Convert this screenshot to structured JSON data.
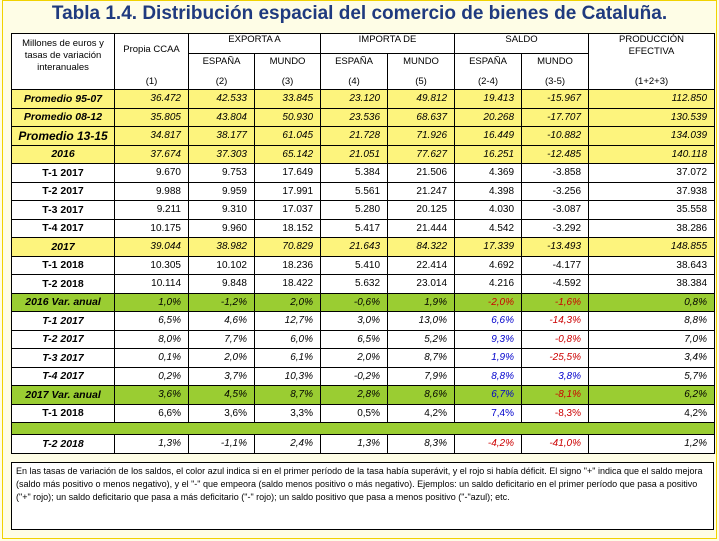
{
  "title": "Tabla 1.4. Distribución espacial del comercio de bienes de Cataluña.",
  "header": {
    "stub": "Millones de euros y tasas de variación interanuales",
    "propia_top": "Propia CCAA",
    "propia_bot": "(1)",
    "exporta": "EXPORTA A",
    "importa": "IMPORTA DE",
    "saldo": "SALDO",
    "prod_top": "PRODUCCIÓN EFECTIVA",
    "prod_bot": "(1+2+3)",
    "sub": [
      {
        "top": "ESPAÑA",
        "bot": "(2)"
      },
      {
        "top": "MUNDO",
        "bot": "(3)"
      },
      {
        "top": "ESPAÑA",
        "bot": "(4)"
      },
      {
        "top": "MUNDO",
        "bot": "(5)"
      },
      {
        "top": "ESPAÑA",
        "bot": "(2-4)"
      },
      {
        "top": "MUNDO",
        "bot": "(3-5)"
      }
    ]
  },
  "rows": [
    {
      "label": "Promedio 95-07",
      "style": "yellow italic",
      "values": [
        "36.472",
        "42.533",
        "33.845",
        "23.120",
        "49.812",
        "19.413",
        "-15.967",
        "112.850"
      ],
      "colors": [
        "",
        "",
        "",
        "",
        "",
        "",
        "",
        ""
      ]
    },
    {
      "label": "Promedio 08-12",
      "style": "yellow italic",
      "values": [
        "35.805",
        "43.804",
        "50.930",
        "23.536",
        "68.637",
        "20.268",
        "-17.707",
        "130.539"
      ],
      "colors": [
        "",
        "",
        "",
        "",
        "",
        "",
        "",
        ""
      ]
    },
    {
      "label": "Promedio 13-15",
      "style": "yellow italic big",
      "values": [
        "34.817",
        "38.177",
        "61.045",
        "21.728",
        "71.926",
        "16.449",
        "-10.882",
        "134.039"
      ],
      "colors": [
        "",
        "",
        "",
        "",
        "",
        "",
        "",
        ""
      ]
    },
    {
      "label": "2016",
      "style": "yellow italic",
      "values": [
        "37.674",
        "37.303",
        "65.142",
        "21.051",
        "77.627",
        "16.251",
        "-12.485",
        "140.118"
      ],
      "colors": [
        "",
        "",
        "",
        "",
        "",
        "",
        "",
        ""
      ]
    },
    {
      "label": "T-1 2017",
      "style": "white",
      "values": [
        "9.670",
        "9.753",
        "17.649",
        "5.384",
        "21.506",
        "4.369",
        "-3.858",
        "37.072"
      ],
      "colors": [
        "",
        "",
        "",
        "",
        "",
        "",
        "",
        ""
      ]
    },
    {
      "label": "T-2 2017",
      "style": "white",
      "values": [
        "9.988",
        "9.959",
        "17.991",
        "5.561",
        "21.247",
        "4.398",
        "-3.256",
        "37.938"
      ],
      "colors": [
        "",
        "",
        "",
        "",
        "",
        "",
        "",
        ""
      ]
    },
    {
      "label": "T-3 2017",
      "style": "white",
      "values": [
        "9.211",
        "9.310",
        "17.037",
        "5.280",
        "20.125",
        "4.030",
        "-3.087",
        "35.558"
      ],
      "colors": [
        "",
        "",
        "",
        "",
        "",
        "",
        "",
        ""
      ]
    },
    {
      "label": "T-4 2017",
      "style": "white",
      "values": [
        "10.175",
        "9.960",
        "18.152",
        "5.417",
        "21.444",
        "4.542",
        "-3.292",
        "38.286"
      ],
      "colors": [
        "",
        "",
        "",
        "",
        "",
        "",
        "",
        ""
      ]
    },
    {
      "label": "2017",
      "style": "yellow italic",
      "values": [
        "39.044",
        "38.982",
        "70.829",
        "21.643",
        "84.322",
        "17.339",
        "-13.493",
        "148.855"
      ],
      "colors": [
        "",
        "",
        "",
        "",
        "",
        "",
        "",
        ""
      ]
    },
    {
      "label": "T-1 2018",
      "style": "white",
      "values": [
        "10.305",
        "10.102",
        "18.236",
        "5.410",
        "22.414",
        "4.692",
        "-4.177",
        "38.643"
      ],
      "colors": [
        "",
        "",
        "",
        "",
        "",
        "",
        "",
        ""
      ]
    },
    {
      "label": "T-2 2018",
      "style": "white",
      "values": [
        "10.114",
        "9.848",
        "18.422",
        "5.632",
        "23.014",
        "4.216",
        "-4.592",
        "38.384"
      ],
      "colors": [
        "",
        "",
        "",
        "",
        "",
        "",
        "",
        ""
      ]
    },
    {
      "label": "2016 Var. anual",
      "style": "green italic",
      "values": [
        "1,0%",
        "-1,2%",
        "2,0%",
        "-0,6%",
        "1,9%",
        "-2,0%",
        "-1,6%",
        "0,8%"
      ],
      "colors": [
        "",
        "",
        "",
        "",
        "",
        "red",
        "red",
        ""
      ]
    },
    {
      "label": "T-1 2017",
      "style": "white italic",
      "values": [
        "6,5%",
        "4,6%",
        "12,7%",
        "3,0%",
        "13,0%",
        "6,6%",
        "-14,3%",
        "8,8%"
      ],
      "colors": [
        "",
        "",
        "",
        "",
        "",
        "blue",
        "red",
        ""
      ]
    },
    {
      "label": "T-2 2017",
      "style": "white italic",
      "values": [
        "8,0%",
        "7,7%",
        "6,0%",
        "6,5%",
        "5,2%",
        "9,3%",
        "-0,8%",
        "7,0%"
      ],
      "colors": [
        "",
        "",
        "",
        "",
        "",
        "blue",
        "red",
        ""
      ]
    },
    {
      "label": "T-3 2017",
      "style": "white italic",
      "values": [
        "0,1%",
        "2,0%",
        "6,1%",
        "2,0%",
        "8,7%",
        "1,9%",
        "-25,5%",
        "3,4%"
      ],
      "colors": [
        "",
        "",
        "",
        "",
        "",
        "blue",
        "red",
        ""
      ]
    },
    {
      "label": "T-4 2017",
      "style": "white italic",
      "values": [
        "0,2%",
        "3,7%",
        "10,3%",
        "-0,2%",
        "7,9%",
        "8,8%",
        "3,8%",
        "5,7%"
      ],
      "colors": [
        "",
        "",
        "",
        "",
        "",
        "blue",
        "blue",
        ""
      ]
    },
    {
      "label": "2017 Var. anual",
      "style": "green italic",
      "values": [
        "3,6%",
        "4,5%",
        "8,7%",
        "2,8%",
        "8,6%",
        "6,7%",
        "-8,1%",
        "6,2%"
      ],
      "colors": [
        "",
        "",
        "",
        "",
        "",
        "blue",
        "red",
        ""
      ]
    },
    {
      "label": "T-1 2018",
      "style": "white",
      "values": [
        "6,6%",
        "3,6%",
        "3,3%",
        "0,5%",
        "4,2%",
        "7,4%",
        "-8,3%",
        "4,2%"
      ],
      "colors": [
        "",
        "",
        "",
        "",
        "",
        "blue",
        "red",
        ""
      ]
    },
    {
      "label": "T-2 2018",
      "style": "white italic",
      "values": [
        "1,3%",
        "-1,1%",
        "2,4%",
        "1,3%",
        "8,3%",
        "-4,2%",
        "-41,0%",
        "1,2%"
      ],
      "colors": [
        "",
        "",
        "",
        "",
        "",
        "red",
        "red",
        ""
      ]
    }
  ],
  "note": "En las tasas de variación de los saldos, el color azul indica si en el primer período de la tasa había superávit, y el rojo si había déficit. El signo \"+\" indica que el saldo mejora (saldo más positivo o menos negativo), y el \"-\" que empeora (saldo menos positivo o más negativo). Ejemplos: un saldo deficitario en el primer período que pasa a positivo (\"+\" rojo); un saldo deficitario que pasa a más deficitario (\"-\" rojo); un saldo positivo que pasa a menos positivo (\"-\"azul); etc."
}
